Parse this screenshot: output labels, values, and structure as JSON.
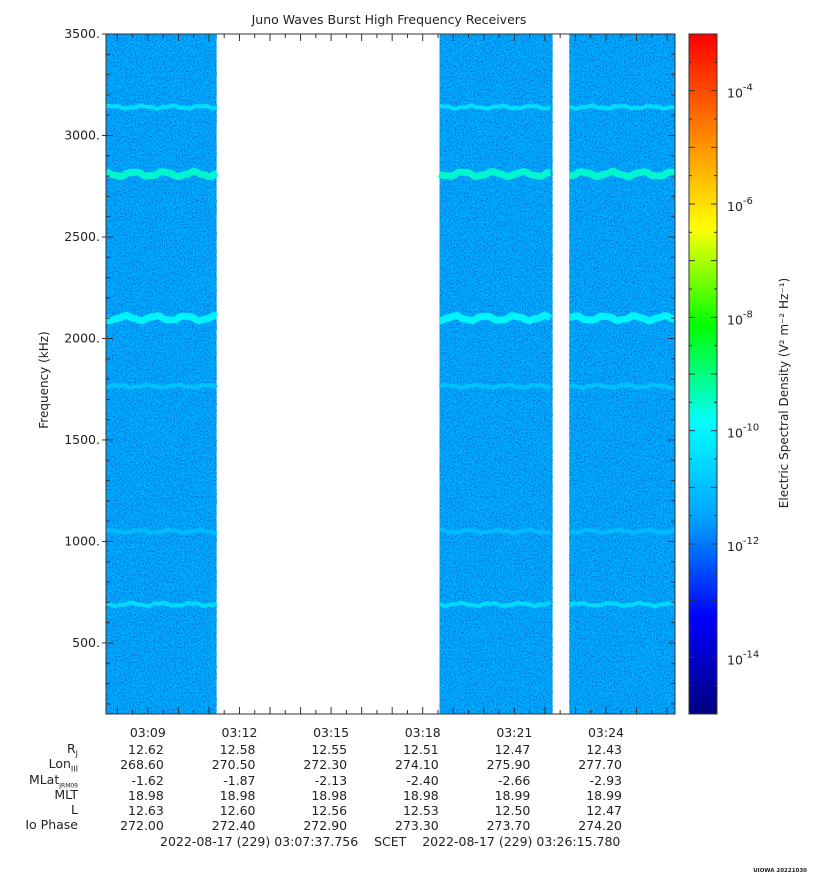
{
  "chart_data": {
    "type": "heatmap",
    "title": "Juno Waves Burst High Frequency Receivers",
    "ylabel": "Frequency (kHz)",
    "ylim": [
      150,
      3500
    ],
    "yticks": [
      "500.",
      "1000.",
      "1500.",
      "2000.",
      "2500.",
      "3000.",
      "3500."
    ],
    "ytick_values": [
      500,
      1000,
      1500,
      2000,
      2500,
      3000,
      3500
    ],
    "xlim_minutes": [
      187.63,
      206.26
    ],
    "xticks": [
      {
        "label": "03:09",
        "minute": 189
      },
      {
        "label": "03:12",
        "minute": 192
      },
      {
        "label": "03:15",
        "minute": 195
      },
      {
        "label": "03:18",
        "minute": 198
      },
      {
        "label": "03:21",
        "minute": 201
      },
      {
        "label": "03:24",
        "minute": 204
      }
    ],
    "data_segments_minutes": [
      [
        187.63,
        191.25
      ],
      [
        198.55,
        202.25
      ],
      [
        202.8,
        206.26
      ]
    ],
    "background_level_log10": -11.3,
    "emission_lines": [
      {
        "freq_khz": 3140,
        "log10_level": -10.3
      },
      {
        "freq_khz": 2810,
        "log10_level": -9.5
      },
      {
        "freq_khz": 2100,
        "log10_level": -9.9
      },
      {
        "freq_khz": 1765,
        "log10_level": -10.9
      },
      {
        "freq_khz": 1050,
        "log10_level": -11.0
      },
      {
        "freq_khz": 690,
        "log10_level": -10.4
      }
    ],
    "colorbar": {
      "label": "Electric Spectral Density (V² m⁻² Hz⁻¹)",
      "scale": "log",
      "range_log10": [
        -15,
        -3
      ],
      "tick_exponents": [
        -4,
        -6,
        -8,
        -10,
        -12,
        -14
      ],
      "tick_prefix": "10",
      "colors": [
        "#000080",
        "#0000ff",
        "#00a0ff",
        "#00ffff",
        "#00ff00",
        "#ffff00",
        "#ff8000",
        "#ff0000"
      ]
    },
    "grid": false
  },
  "ephemeris": {
    "labels": [
      {
        "main": "R",
        "sub": "J"
      },
      {
        "main": "Lon",
        "sub": "III"
      },
      {
        "main": "MLat",
        "sub": "JRM09"
      },
      {
        "main": "MLT",
        "sub": ""
      },
      {
        "main": "L",
        "sub": ""
      },
      {
        "main": "Io Phase",
        "sub": ""
      }
    ],
    "rows": [
      [
        "12.62",
        "12.58",
        "12.55",
        "12.51",
        "12.47",
        "12.43"
      ],
      [
        "268.60",
        "270.50",
        "272.30",
        "274.10",
        "275.90",
        "277.70"
      ],
      [
        "-1.62",
        "-1.87",
        "-2.13",
        "-2.40",
        "-2.66",
        "-2.93"
      ],
      [
        "18.98",
        "18.98",
        "18.98",
        "18.98",
        "18.99",
        "18.99"
      ],
      [
        "12.63",
        "12.60",
        "12.56",
        "12.53",
        "12.50",
        "12.47"
      ],
      [
        "272.00",
        "272.40",
        "272.90",
        "273.30",
        "273.70",
        "274.20"
      ]
    ]
  },
  "time_range": {
    "start": "2022-08-17 (229) 03:07:37.756",
    "mid": "SCET",
    "end": "2022-08-17 (229) 03:26:15.780"
  },
  "credit": "UIOWA 20221030"
}
